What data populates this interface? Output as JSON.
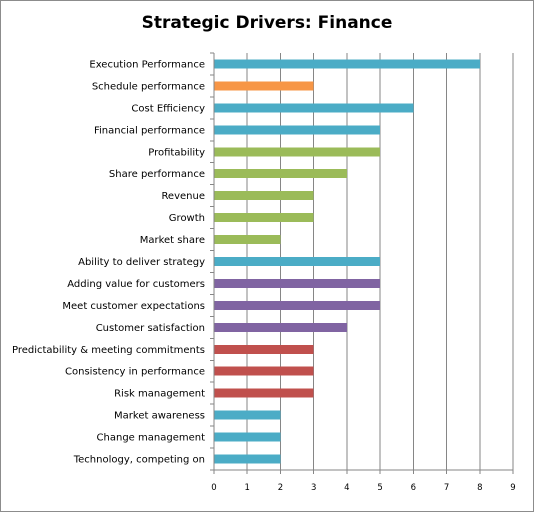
{
  "chart_data": {
    "type": "bar",
    "orientation": "horizontal",
    "title": "Strategic Drivers: Finance",
    "xlabel": "",
    "ylabel": "",
    "xlim": [
      0,
      9
    ],
    "xticks": [
      "0",
      "1",
      "2",
      "3",
      "4",
      "5",
      "6",
      "7",
      "8",
      "9"
    ],
    "grid": "vertical",
    "legend": "none",
    "categories": [
      "Execution Performance",
      "Schedule performance",
      "Cost Efficiency",
      "Financial performance",
      "Profitability",
      "Share performance",
      "Revenue",
      "Growth",
      "Market share",
      "Ability to deliver strategy",
      "Adding value for customers",
      "Meet customer expectations",
      "Customer satisfaction",
      "Predictability & meeting commitments",
      "Consistency in performance",
      "Risk management",
      "Market awareness",
      "Change management",
      "Technology, competing on"
    ],
    "values": [
      8,
      3,
      6,
      5,
      5,
      4,
      3,
      3,
      2,
      5,
      5,
      5,
      4,
      3,
      3,
      3,
      2,
      2,
      2
    ],
    "bar_colors": [
      "#4bacc6",
      "#f79646",
      "#4bacc6",
      "#4bacc6",
      "#9bbb59",
      "#9bbb59",
      "#9bbb59",
      "#9bbb59",
      "#9bbb59",
      "#4bacc6",
      "#8064a2",
      "#8064a2",
      "#8064a2",
      "#c0504d",
      "#c0504d",
      "#c0504d",
      "#4bacc6",
      "#4bacc6",
      "#4bacc6"
    ],
    "colors": {
      "grid": "#868686",
      "axis": "#868686",
      "border": "#8c8c8c"
    }
  }
}
